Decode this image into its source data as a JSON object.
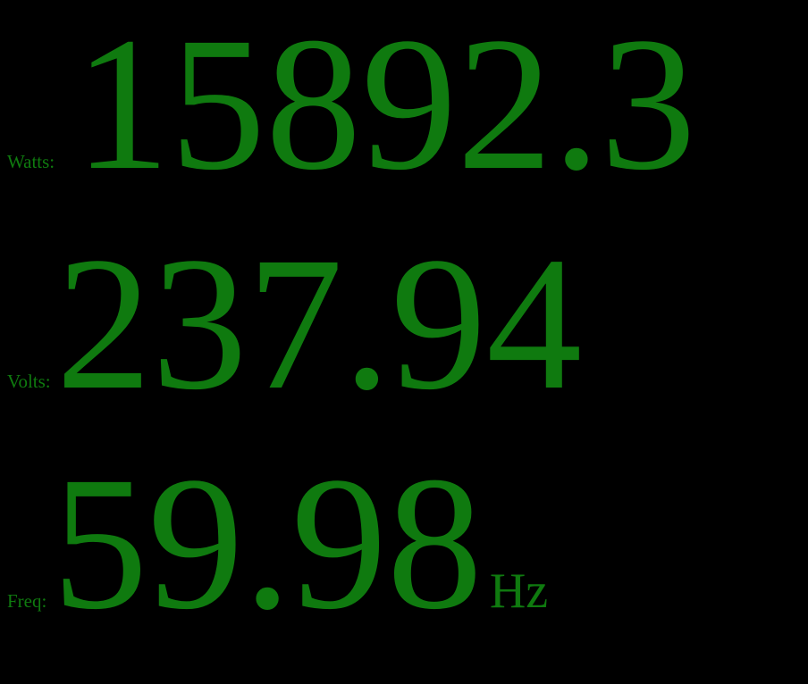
{
  "theme": {
    "background": "#000000",
    "text_color": "#0f7a0f"
  },
  "readouts": {
    "watts": {
      "label": "Watts:",
      "value": "15892.3"
    },
    "volts": {
      "label": "Volts:",
      "value": "237.94"
    },
    "freq": {
      "label": "Freq:",
      "value": "59.98",
      "unit": "Hz"
    }
  }
}
